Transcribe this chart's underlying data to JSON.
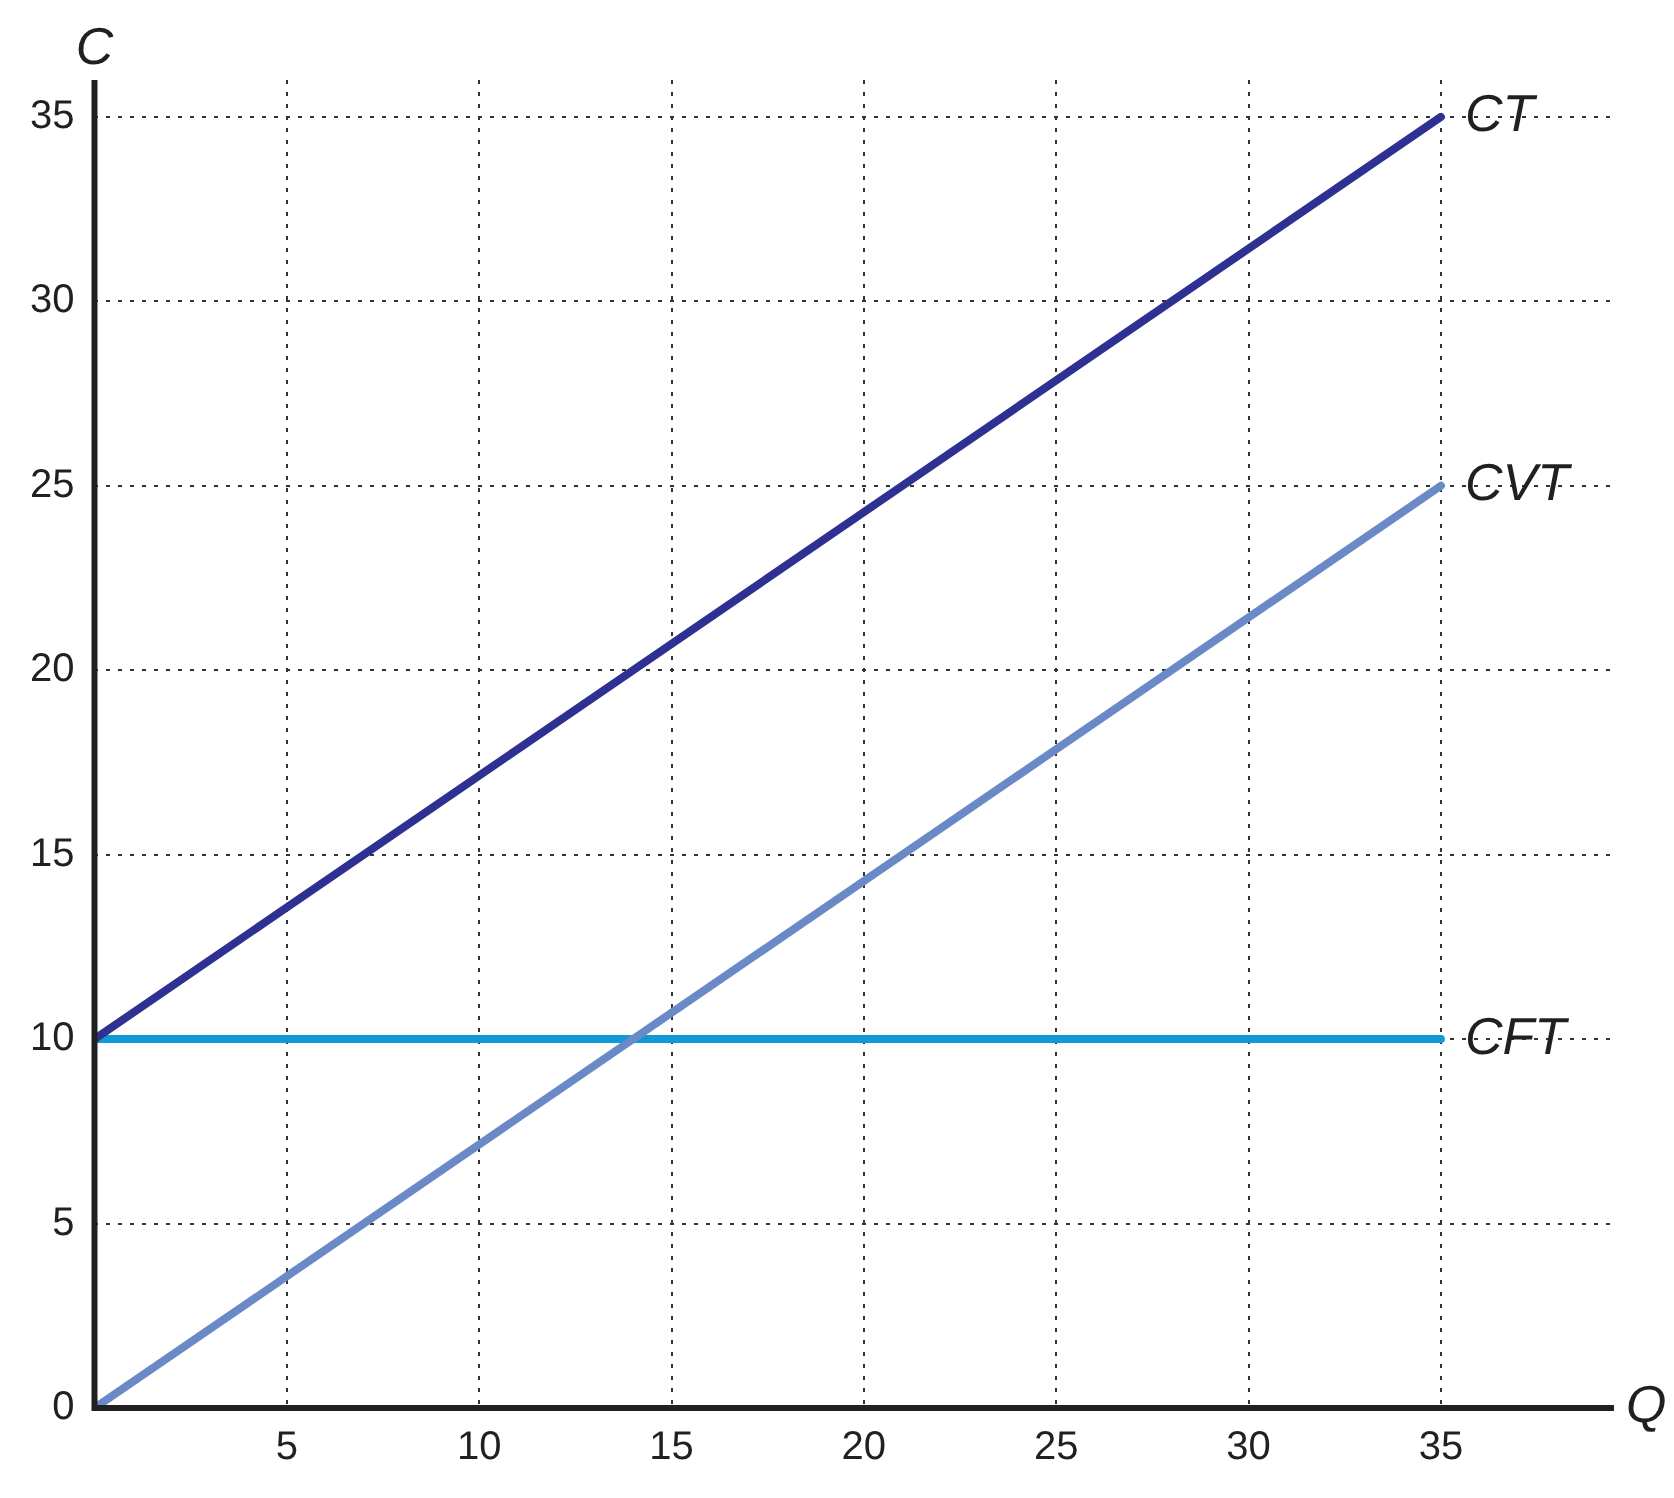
{
  "chart_data": {
    "type": "line",
    "xlabel": "Q",
    "ylabel": "C",
    "x": [
      0,
      35
    ],
    "series": [
      {
        "name": "CT",
        "color": "#2e3192",
        "values": [
          10,
          35
        ]
      },
      {
        "name": "CVT",
        "color": "#6a8ac7",
        "values": [
          0,
          25
        ]
      },
      {
        "name": "CFT",
        "color": "#0f9ad6",
        "values": [
          10,
          10
        ]
      }
    ],
    "xlim": [
      0,
      39.5
    ],
    "ylim": [
      0,
      36
    ],
    "xticks": [
      5,
      10,
      15,
      20,
      25,
      30,
      35
    ],
    "yticks": [
      0,
      5,
      10,
      15,
      20,
      25,
      30,
      35
    ],
    "grid": true,
    "legend": false,
    "marker": "none",
    "line_style": "solid"
  }
}
